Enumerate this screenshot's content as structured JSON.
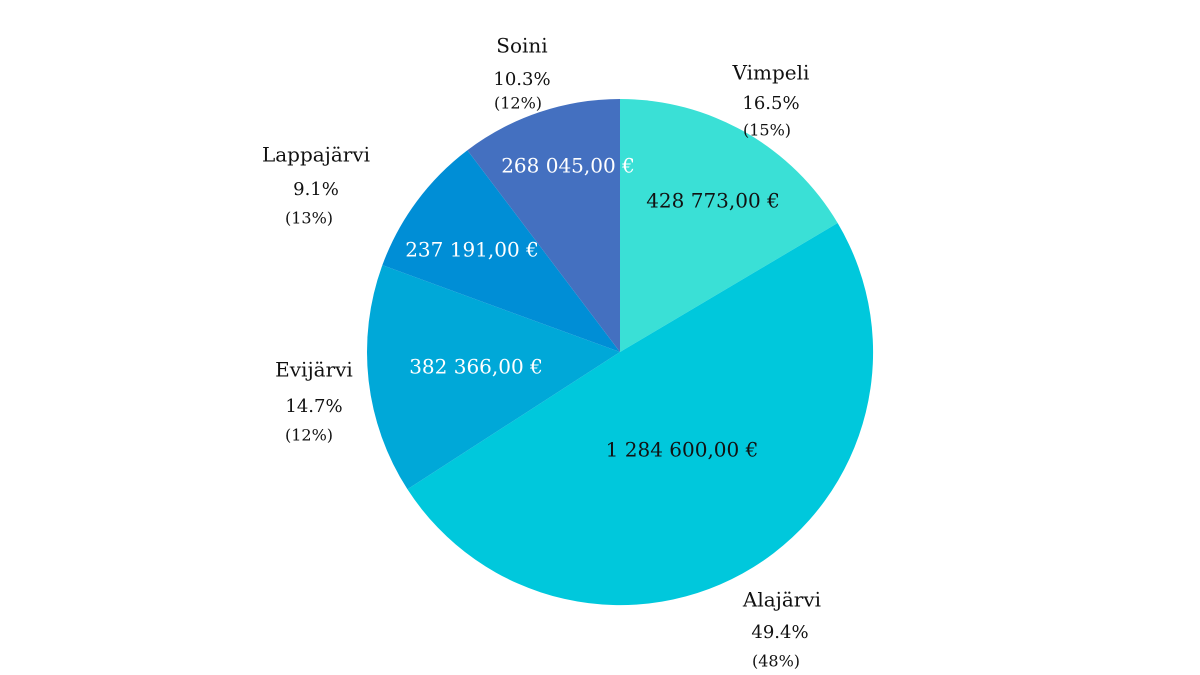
{
  "chart_data": {
    "type": "pie",
    "slices": [
      {
        "label": "Vimpeli",
        "value": 428773,
        "value_label": "428 773,00 €",
        "percent": "16.5%",
        "previous_percent": "(15%)",
        "color": "#3ae0d6",
        "value_text_color": "#111111"
      },
      {
        "label": "Alajärvi",
        "value": 1284600,
        "value_label": "1 284 600,00 €",
        "percent": "49.4%",
        "previous_percent": "(48%)",
        "color": "#00c8dc",
        "value_text_color": "#111111"
      },
      {
        "label": "Evijärvi",
        "value": 382366,
        "value_label": "382 366,00 €",
        "percent": "14.7%",
        "previous_percent": "(12%)",
        "color": "#00a8d8",
        "value_text_color": "#ffffff"
      },
      {
        "label": "Lappajärvi",
        "value": 237191,
        "value_label": "237 191,00 €",
        "percent": "9.1%",
        "previous_percent": "(13%)",
        "color": "#008ed6",
        "value_text_color": "#ffffff"
      },
      {
        "label": "Soini",
        "value": 268045,
        "value_label": "268 045,00 €",
        "percent": "10.3%",
        "previous_percent": "(12%)",
        "color": "#4470c0",
        "value_text_color": "#ffffff"
      }
    ],
    "start_angle_deg": 0,
    "direction": "clockwise",
    "legend": "none"
  }
}
